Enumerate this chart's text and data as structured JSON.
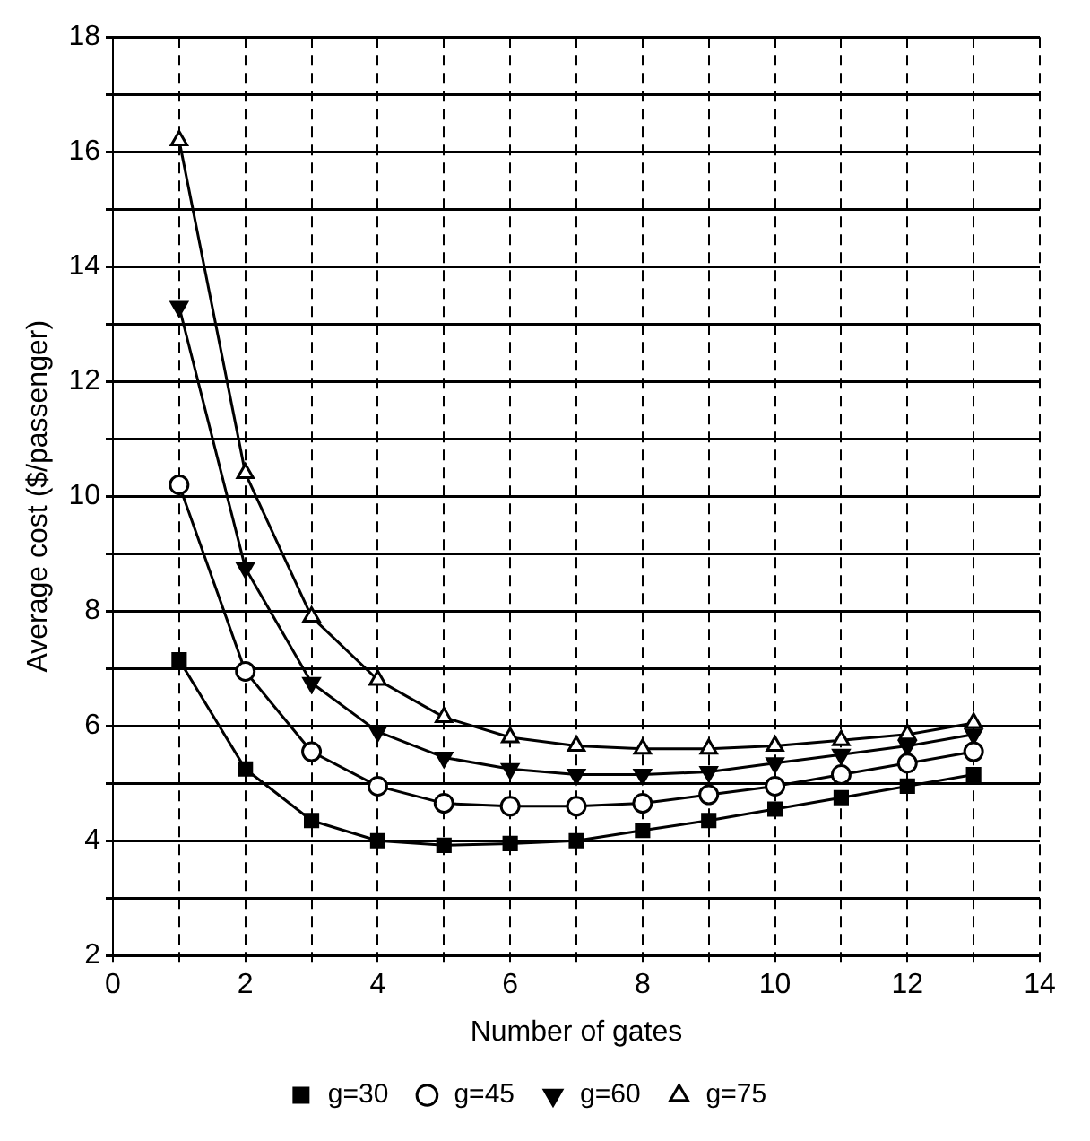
{
  "chart_data": {
    "type": "line",
    "xlabel": "Number of gates",
    "ylabel": "Average cost ($/passenger)",
    "x": [
      1,
      2,
      3,
      4,
      5,
      6,
      7,
      8,
      9,
      10,
      11,
      12,
      13
    ],
    "series": [
      {
        "name": "g=30",
        "color": "#000000",
        "marker": "square",
        "values": [
          7.15,
          5.25,
          4.35,
          4.0,
          3.92,
          3.95,
          4.0,
          4.18,
          4.35,
          4.55,
          4.75,
          4.95,
          5.15
        ]
      },
      {
        "name": "g=45",
        "color": "#000000",
        "marker": "circle",
        "values": [
          10.2,
          6.95,
          5.55,
          4.95,
          4.65,
          4.6,
          4.6,
          4.65,
          4.8,
          4.95,
          5.15,
          5.35,
          5.55
        ]
      },
      {
        "name": "g=60",
        "color": "#000000",
        "marker": "triangle-down",
        "values": [
          13.3,
          8.75,
          6.75,
          5.9,
          5.45,
          5.25,
          5.15,
          5.15,
          5.2,
          5.35,
          5.5,
          5.65,
          5.85
        ]
      },
      {
        "name": "g=75",
        "color": "#000000",
        "marker": "triangle",
        "values": [
          16.2,
          10.4,
          7.9,
          6.8,
          6.15,
          5.8,
          5.65,
          5.6,
          5.6,
          5.65,
          5.75,
          5.85,
          6.05
        ]
      }
    ],
    "xlim": [
      0,
      14
    ],
    "ylim": [
      2,
      18
    ],
    "xticks": [
      0,
      {
        "value": 1,
        "label": null
      },
      2,
      {
        "value": 3,
        "label": null
      },
      4,
      {
        "value": 5,
        "label": null
      },
      6,
      {
        "value": 7,
        "label": null
      },
      8,
      {
        "value": 9,
        "label": null
      },
      10,
      {
        "value": 11,
        "label": null
      },
      12,
      {
        "value": 13,
        "label": null
      },
      14
    ],
    "yticks": [
      2,
      {
        "value": 3,
        "label": null
      },
      4,
      {
        "value": 5,
        "label": null
      },
      6,
      {
        "value": 7,
        "label": null
      },
      8,
      {
        "value": 9,
        "label": null
      },
      10,
      {
        "value": 11,
        "label": null
      },
      12,
      {
        "value": 13,
        "label": null
      },
      14,
      {
        "value": 15,
        "label": null
      },
      16,
      {
        "value": 17,
        "label": null
      },
      18
    ],
    "grid": true,
    "legend": "bottom",
    "line_style": "solid"
  }
}
